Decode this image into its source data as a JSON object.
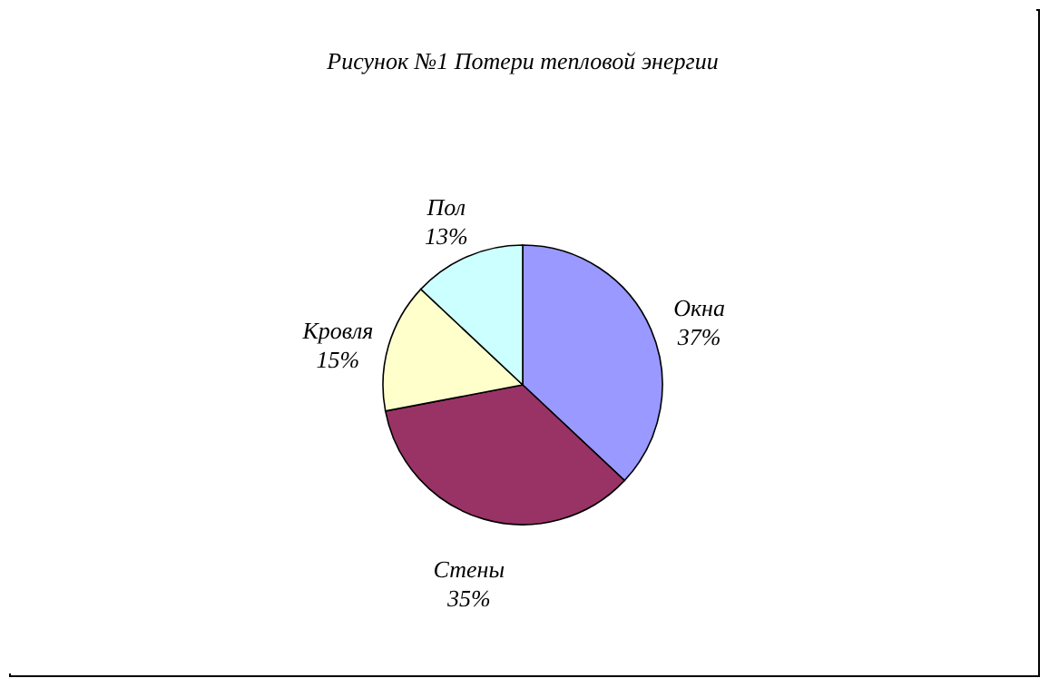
{
  "chart_data": {
    "type": "pie",
    "title": "Рисунок №1 Потери тепловой энергии",
    "categories": [
      "Окна",
      "Стены",
      "Кровля",
      "Пол"
    ],
    "values": [
      37,
      35,
      15,
      13
    ],
    "colors": [
      "#9999ff",
      "#993366",
      "#ffffcc",
      "#ccffff"
    ],
    "value_labels": [
      "37%",
      "35%",
      "15%",
      "13%"
    ],
    "legend": false
  }
}
